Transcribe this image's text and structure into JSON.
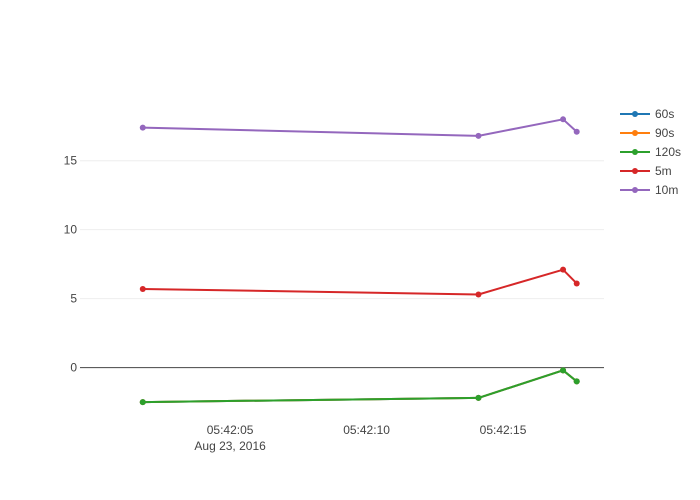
{
  "chart_data": {
    "type": "line",
    "title": "",
    "xlabel": "",
    "ylabel": "",
    "x": [
      "2016-08-23 05:42:01.8",
      "2016-08-23 05:42:14.1",
      "2016-08-23 05:42:17.2",
      "2016-08-23 05:42:17.7"
    ],
    "x_ticks": [
      {
        "t": "2016-08-23 05:42:05",
        "label": "05:42:05",
        "sublabel": "Aug 23, 2016"
      },
      {
        "t": "2016-08-23 05:42:10",
        "label": "05:42:10",
        "sublabel": ""
      },
      {
        "t": "2016-08-23 05:42:15",
        "label": "05:42:15",
        "sublabel": ""
      }
    ],
    "xlim": [
      "2016-08-23 05:41:59.5",
      "2016-08-23 05:42:18.7"
    ],
    "ylim": [
      -3.8,
      19.4
    ],
    "y_ticks": [
      0,
      5,
      10,
      15
    ],
    "y_tick_labels": [
      "0",
      "5",
      "10",
      "15"
    ],
    "grid": true,
    "legend_position": "top-right",
    "series": [
      {
        "name": "60s",
        "color": "#1f77b4",
        "values": [
          -2.5,
          -2.2,
          -0.2,
          -1.0
        ]
      },
      {
        "name": "90s",
        "color": "#ff7f0e",
        "values": [
          -2.5,
          -2.2,
          -0.2,
          -1.0
        ]
      },
      {
        "name": "120s",
        "color": "#2ca02c",
        "values": [
          -2.5,
          -2.2,
          -0.2,
          -1.0
        ]
      },
      {
        "name": "5m",
        "color": "#d62728",
        "values": [
          5.7,
          5.3,
          7.1,
          6.1
        ]
      },
      {
        "name": "10m",
        "color": "#9467bd",
        "values": [
          17.4,
          16.8,
          18.0,
          17.1
        ]
      }
    ]
  }
}
